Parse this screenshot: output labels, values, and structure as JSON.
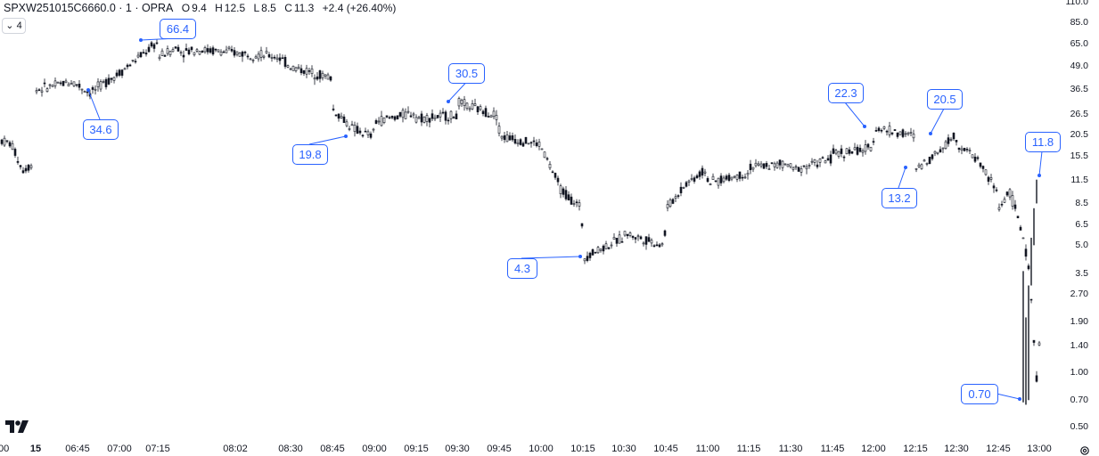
{
  "legend": {
    "symbol": "SPXW251015C6660.0 · 1 · OPRA",
    "open_label": "O",
    "open": "9.4",
    "high_label": "H",
    "high": "12.5",
    "low_label": "L",
    "low": "8.5",
    "close_label": "C",
    "close": "11.3",
    "change": "+2.4 (+26.40%)"
  },
  "indicator_badge": "4",
  "chart_data": {
    "type": "candlestick",
    "scale": "log",
    "ylim": [
      0.5,
      110
    ],
    "y_ticks": [
      "110.0",
      "85.0",
      "65.0",
      "49.0",
      "36.5",
      "26.5",
      "20.5",
      "15.5",
      "11.5",
      "8.5",
      "6.5",
      "5.0",
      "3.5",
      "2.70",
      "1.90",
      "1.40",
      "1.00",
      "0.70",
      "0.50"
    ],
    "x_ticks": [
      "00",
      "15",
      "06:45",
      "07:00",
      "07:15",
      "08:02",
      "08:30",
      "08:45",
      "09:00",
      "09:15",
      "09:30",
      "09:45",
      "10:00",
      "10:15",
      "10:30",
      "10:45",
      "11:00",
      "11:15",
      "11:30",
      "11:45",
      "12:00",
      "12:15",
      "12:30",
      "12:45",
      "13:00"
    ],
    "x_bold": [
      "15"
    ],
    "price_path": [
      [
        "00",
        19
      ],
      [
        "00",
        18
      ],
      [
        "00",
        13
      ],
      [
        "00",
        14
      ],
      [
        "06:45",
        36
      ],
      [
        "06:45",
        38
      ],
      [
        "06:45",
        40
      ],
      [
        "06:45",
        34.6
      ],
      [
        "07:00",
        45
      ],
      [
        "07:00",
        55
      ],
      [
        "07:15",
        66.4
      ],
      [
        "07:15",
        62
      ],
      [
        "07:15",
        60
      ],
      [
        "08:02",
        58
      ],
      [
        "08:02",
        55
      ],
      [
        "08:30",
        48
      ],
      [
        "08:30",
        42
      ],
      [
        "08:45",
        28
      ],
      [
        "08:45",
        22
      ],
      [
        "08:45",
        19.8
      ],
      [
        "09:00",
        24
      ],
      [
        "09:00",
        27
      ],
      [
        "09:15",
        25
      ],
      [
        "09:15",
        26
      ],
      [
        "09:30",
        30.5
      ],
      [
        "09:30",
        26
      ],
      [
        "09:45",
        20
      ],
      [
        "09:45",
        18
      ],
      [
        "10:00",
        17
      ],
      [
        "10:00",
        10
      ],
      [
        "10:00",
        8
      ],
      [
        "10:15",
        4.3
      ],
      [
        "10:15",
        5.5
      ],
      [
        "10:30",
        5.8
      ],
      [
        "10:30",
        5
      ],
      [
        "10:45",
        8
      ],
      [
        "10:45",
        11
      ],
      [
        "10:45",
        13
      ],
      [
        "11:00",
        11
      ],
      [
        "11:00",
        12.5
      ],
      [
        "11:15",
        13.5
      ],
      [
        "11:15",
        14
      ],
      [
        "11:30",
        13
      ],
      [
        "11:30",
        15
      ],
      [
        "11:45",
        16
      ],
      [
        "11:45",
        17
      ],
      [
        "12:00",
        22.3
      ],
      [
        "12:00",
        20
      ],
      [
        "12:15",
        13.2
      ],
      [
        "12:15",
        16
      ],
      [
        "12:15",
        20.5
      ],
      [
        "12:30",
        18
      ],
      [
        "12:30",
        15
      ],
      [
        "12:30",
        10
      ],
      [
        "12:45",
        8
      ],
      [
        "12:45",
        10
      ],
      [
        "12:45",
        7
      ],
      [
        "12:45",
        3.8
      ],
      [
        "12:45",
        0.7
      ],
      [
        "13:00",
        3
      ],
      [
        "13:00",
        8
      ],
      [
        "13:00",
        11.8
      ]
    ],
    "annotations": [
      "66.4",
      "34.6",
      "19.8",
      "30.5",
      "4.3",
      "22.3",
      "13.2",
      "20.5",
      "11.8",
      "0.70"
    ]
  },
  "callouts": [
    {
      "name": "callout-66-4",
      "text": "66.4"
    },
    {
      "name": "callout-34-6",
      "text": "34.6"
    },
    {
      "name": "callout-19-8",
      "text": "19.8"
    },
    {
      "name": "callout-30-5",
      "text": "30.5"
    },
    {
      "name": "callout-4-3",
      "text": "4.3"
    },
    {
      "name": "callout-22-3",
      "text": "22.3"
    },
    {
      "name": "callout-13-2",
      "text": "13.2"
    },
    {
      "name": "callout-20-5",
      "text": "20.5"
    },
    {
      "name": "callout-11-8",
      "text": "11.8"
    },
    {
      "name": "callout-0-70",
      "text": "0.70"
    }
  ],
  "logo_text": "17",
  "colors": {
    "candle": "#131722",
    "accent": "#2962ff",
    "axis_text": "#131722"
  }
}
